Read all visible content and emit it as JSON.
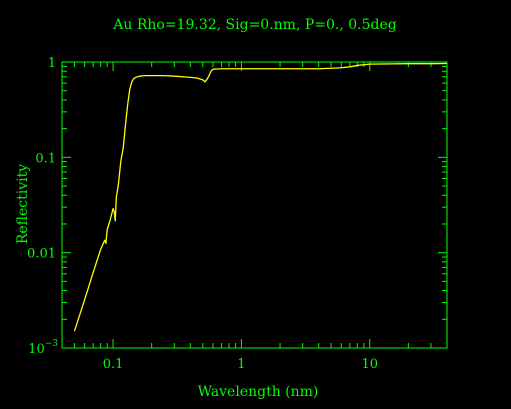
{
  "chart_data": {
    "type": "line",
    "title": "Au Rho=19.32, Sig=0.nm, P=0., 0.5deg",
    "xlabel": "Wavelength (nm)",
    "ylabel": "Reflectivity",
    "xscale": "log",
    "yscale": "log",
    "xlim": [
      0.04,
      40
    ],
    "ylim": [
      0.001,
      1
    ],
    "grid": false,
    "x_ticks": [
      {
        "value": 0.1,
        "label": "0.1"
      },
      {
        "value": 1,
        "label": "1"
      },
      {
        "value": 10,
        "label": "10"
      }
    ],
    "y_ticks": [
      {
        "value": 1,
        "label": "1"
      },
      {
        "value": 0.1,
        "label": "0.1"
      },
      {
        "value": 0.01,
        "label": "0.01"
      }
    ],
    "y_min_label": {
      "base": "10",
      "exponent": "−3"
    },
    "colors": {
      "background": "#000000",
      "axes": "#00ff00",
      "series": "#ffff00"
    },
    "series": [
      {
        "x": [
          0.05,
          0.06,
          0.07,
          0.08,
          0.086,
          0.088,
          0.09,
          0.095,
          0.1,
          0.102,
          0.104,
          0.106,
          0.11,
          0.115,
          0.12,
          0.125,
          0.13,
          0.135,
          0.14,
          0.145,
          0.15,
          0.16,
          0.18,
          0.2,
          0.25,
          0.3,
          0.35,
          0.4,
          0.45,
          0.5,
          0.52,
          0.54,
          0.56,
          0.58,
          0.6,
          0.7,
          0.8,
          1,
          1.5,
          2,
          3,
          4,
          5,
          6,
          7,
          8,
          10,
          15,
          20,
          30,
          40
        ],
        "y": [
          0.0015,
          0.0032,
          0.0062,
          0.0108,
          0.0135,
          0.0125,
          0.0175,
          0.022,
          0.029,
          0.027,
          0.0215,
          0.038,
          0.052,
          0.092,
          0.125,
          0.22,
          0.36,
          0.52,
          0.62,
          0.67,
          0.69,
          0.71,
          0.72,
          0.72,
          0.72,
          0.71,
          0.7,
          0.69,
          0.68,
          0.65,
          0.62,
          0.66,
          0.72,
          0.8,
          0.84,
          0.85,
          0.85,
          0.85,
          0.85,
          0.85,
          0.85,
          0.85,
          0.86,
          0.87,
          0.89,
          0.92,
          0.95,
          0.955,
          0.96,
          0.96,
          0.965
        ]
      }
    ]
  }
}
